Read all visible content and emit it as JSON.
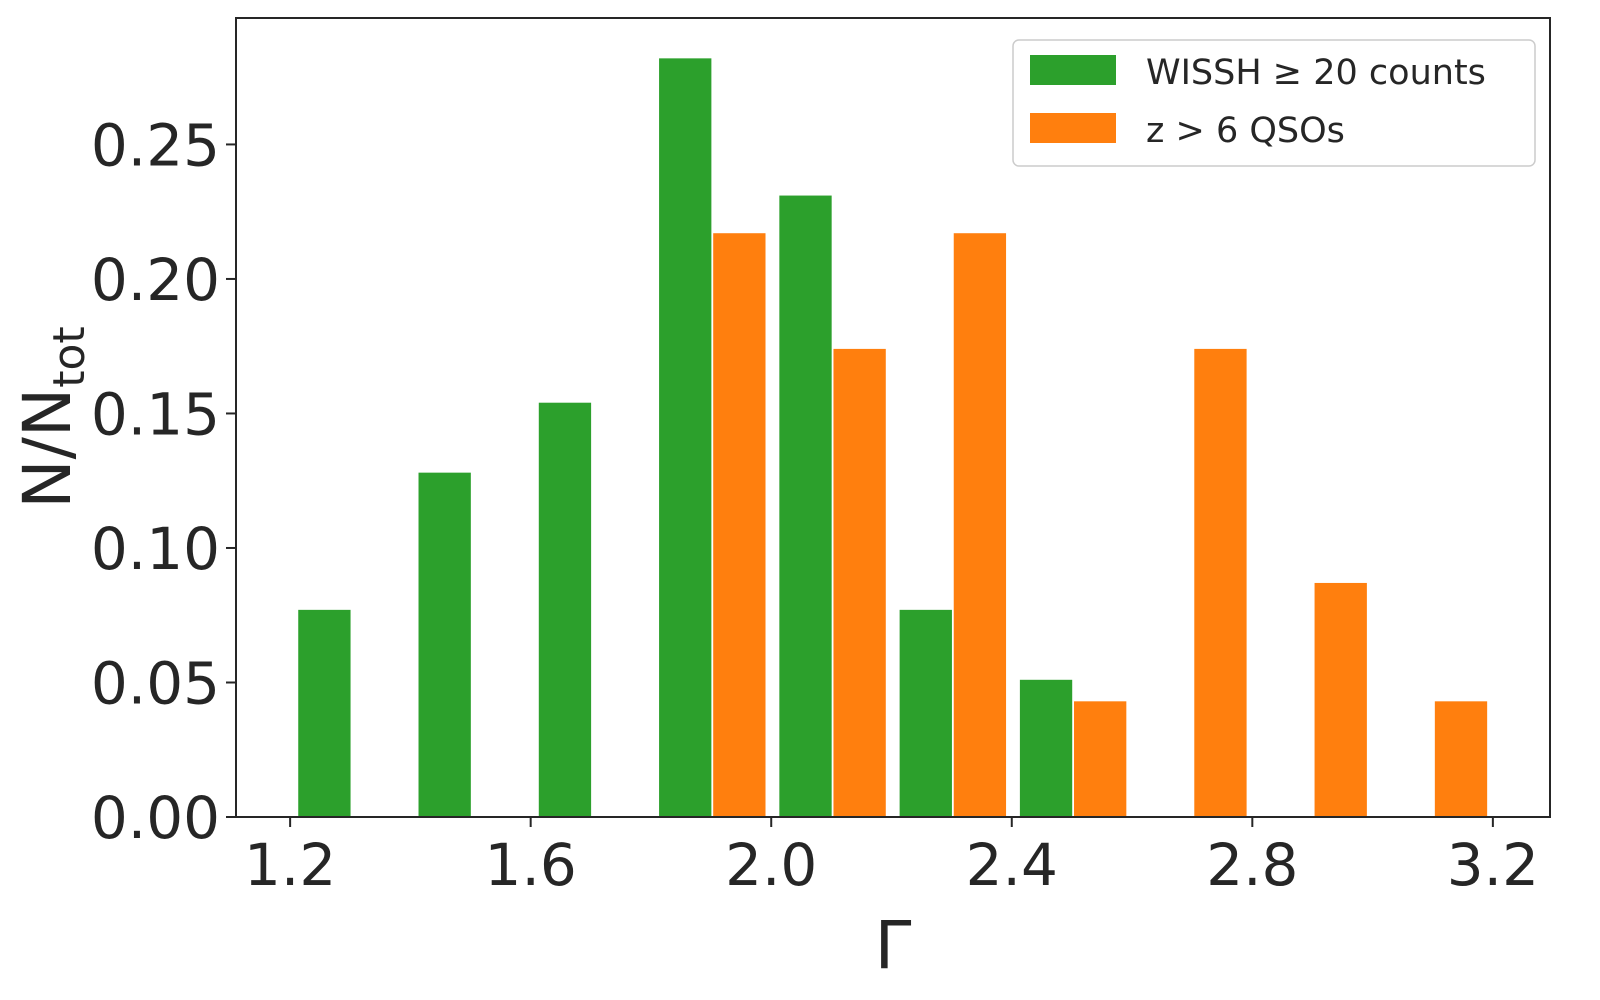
{
  "chart_data": {
    "type": "bar",
    "xlabel": "Γ",
    "ylabel": "N/N",
    "ylabel_subscript": "tot",
    "xlim": [
      1.11,
      3.295
    ],
    "ylim": [
      0,
      0.297
    ],
    "xticks": [
      1.2,
      1.6,
      2.0,
      2.4,
      2.8,
      3.2
    ],
    "xtick_labels": [
      "1.2",
      "1.6",
      "2.0",
      "2.4",
      "2.8",
      "3.2"
    ],
    "yticks": [
      0.0,
      0.05,
      0.1,
      0.15,
      0.2,
      0.25
    ],
    "ytick_labels": [
      "0.00",
      "0.05",
      "0.10",
      "0.15",
      "0.20",
      "0.25"
    ],
    "grid": false,
    "legend_position": "top-right",
    "series": [
      {
        "name": "WISSH ≥ 20 counts",
        "color": "#2ca02c",
        "bin_width": 0.087,
        "x": [
          1.257,
          1.457,
          1.657,
          1.857,
          2.057,
          2.257,
          2.457
        ],
        "values": [
          0.077,
          0.128,
          0.154,
          0.282,
          0.231,
          0.077,
          0.051
        ]
      },
      {
        "name": "z > 6 QSOs",
        "color": "#ff7f0e",
        "bin_width": 0.087,
        "x": [
          1.947,
          2.147,
          2.347,
          2.547,
          2.747,
          2.947,
          3.147
        ],
        "values": [
          0.217,
          0.174,
          0.217,
          0.043,
          0.174,
          0.087,
          0.043
        ]
      }
    ]
  }
}
